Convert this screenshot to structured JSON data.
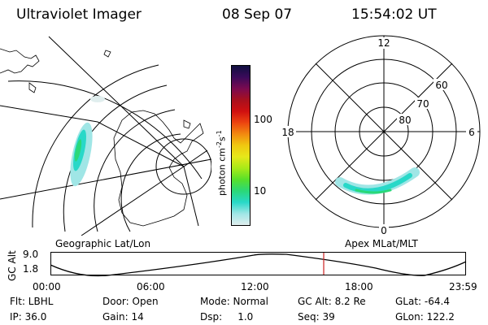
{
  "header": {
    "instrument": "Ultraviolet Imager",
    "date": "08 Sep 07",
    "time": "15:54:02 UT"
  },
  "colorbar": {
    "label_main": "photon cm",
    "label_exp1": "-2",
    "label_s": "s",
    "label_exp2": "-1",
    "ticks": [
      "100",
      "10"
    ],
    "colors": [
      "#101040",
      "#3a0a5a",
      "#7a0a50",
      "#a8101e",
      "#d01010",
      "#ec4410",
      "#f28a10",
      "#f0c810",
      "#e6e81a",
      "#a8ea18",
      "#58e02a",
      "#2ad878",
      "#28d8c8",
      "#a0e6e6",
      "#e0eeee"
    ]
  },
  "geographic_map": {
    "label": "Geographic Lat/Lon"
  },
  "polar_map": {
    "label": "Apex MLat/MLT",
    "mlt_labels": {
      "top": "12",
      "left": "18",
      "right": "6",
      "bottom": "0"
    },
    "lat_labels": [
      "60",
      "70",
      "80"
    ]
  },
  "altitude_plot": {
    "ylabel": "GC Alt",
    "y_ticks": [
      "9.0",
      "1.8"
    ],
    "x_ticks": [
      "00:00",
      "06:00",
      "12:00",
      "18:00",
      "23:59"
    ]
  },
  "footer": {
    "row1": {
      "flt": "Flt: LBHL",
      "door": "Door: Open",
      "mode": "Mode: Normal",
      "gcalt": "GC Alt: 8.2 Re",
      "glat": "GLat: -64.4"
    },
    "row2": {
      "ip": "IP: 36.0",
      "gain": "Gain: 14",
      "dsp": "Dsp:     1.0",
      "seq": "Seq: 39",
      "glon": "GLon: 122.2"
    }
  },
  "colors": {
    "marker": "#cc2222",
    "aurora_core": "#2ad878",
    "aurora_edge": "#a0e6e6"
  }
}
